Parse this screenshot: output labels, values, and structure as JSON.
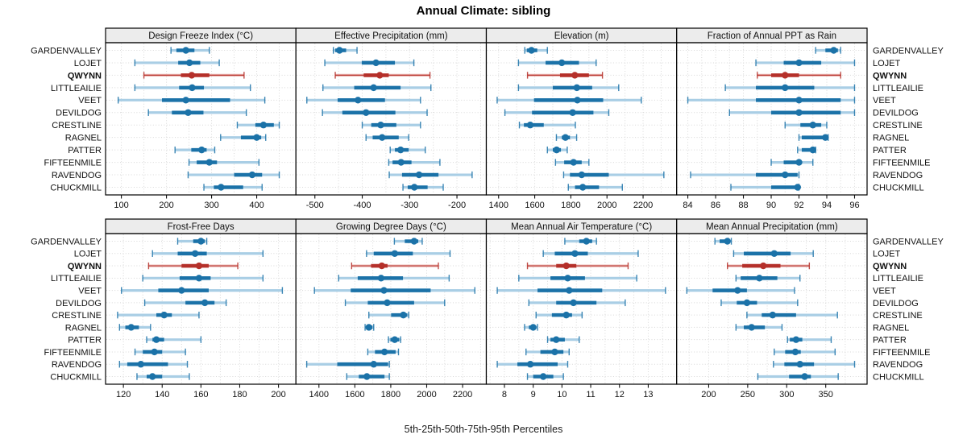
{
  "title": "Annual Climate: sibling",
  "caption": "5th-25th-50th-75th-95th Percentiles",
  "percentile_labels": [
    "5th",
    "25th",
    "50th",
    "75th",
    "95th"
  ],
  "stations": [
    "GARDENVALLEY",
    "LOJET",
    "QWYNN",
    "LITTLEAILIE",
    "VEET",
    "DEVILDOG",
    "CRESTLINE",
    "RAGNEL",
    "PATTER",
    "FIFTEENMILE",
    "RAVENDOG",
    "CHUCKMILL"
  ],
  "highlight_station": "QWYNN",
  "colors": {
    "normal": "#1b72a8",
    "normal_light": "#a9cee5",
    "highlight": "#b5302a",
    "highlight_light": "#ecb7b3",
    "strip_bg": "#ececec",
    "grid": "#d8d8d8",
    "border": "#000000",
    "text": "#111111"
  },
  "chart_data": [
    {
      "type": "interval",
      "title": "Design Freeze Index (°C)",
      "xlim": [
        65,
        487
      ],
      "ticks": [
        100,
        200,
        300,
        400
      ],
      "minor": 50,
      "values": [
        [
          210,
          222,
          243,
          262,
          295
        ],
        [
          130,
          226,
          251,
          275,
          317
        ],
        [
          150,
          232,
          256,
          295,
          372
        ],
        [
          130,
          228,
          257,
          283,
          386
        ],
        [
          93,
          190,
          243,
          341,
          418
        ],
        [
          160,
          212,
          248,
          282,
          377
        ],
        [
          357,
          397,
          415,
          438,
          450
        ],
        [
          320,
          365,
          400,
          410,
          420
        ],
        [
          219,
          255,
          278,
          289,
          307
        ],
        [
          250,
          267,
          295,
          312,
          405
        ],
        [
          248,
          350,
          390,
          412,
          450
        ],
        [
          283,
          305,
          321,
          370,
          412
        ]
      ]
    },
    {
      "type": "interval",
      "title": "Effective Precipitation (mm)",
      "xlim": [
        -540,
        -138
      ],
      "ticks": [
        -500,
        -400,
        -300,
        -200
      ],
      "minor": 50,
      "values": [
        [
          -461,
          -457,
          -448,
          -434,
          -411
        ],
        [
          -479,
          -401,
          -371,
          -331,
          -291
        ],
        [
          -457,
          -397,
          -363,
          -344,
          -257
        ],
        [
          -483,
          -417,
          -376,
          -319,
          -255
        ],
        [
          -517,
          -452,
          -409,
          -352,
          -277
        ],
        [
          -484,
          -442,
          -392,
          -330,
          -263
        ],
        [
          -400,
          -381,
          -361,
          -328,
          -277
        ],
        [
          -392,
          -378,
          -358,
          -323,
          -302
        ],
        [
          -341,
          -331,
          -319,
          -302,
          -267
        ],
        [
          -344,
          -336,
          -318,
          -296,
          -236
        ],
        [
          -343,
          -316,
          -280,
          -239,
          -168
        ],
        [
          -314,
          -304,
          -290,
          -262,
          -229
        ]
      ]
    },
    {
      "type": "interval",
      "title": "Elevation (m)",
      "xlim": [
        1332,
        2386
      ],
      "ticks": [
        1400,
        1600,
        1800,
        2000,
        2200
      ],
      "minor": 100,
      "values": [
        [
          1545,
          1556,
          1582,
          1614,
          1670
        ],
        [
          1510,
          1660,
          1750,
          1845,
          1940
        ],
        [
          1560,
          1740,
          1822,
          1900,
          1975
        ],
        [
          1510,
          1700,
          1833,
          1918,
          2065
        ],
        [
          1392,
          1596,
          1836,
          1979,
          2190
        ],
        [
          1435,
          1585,
          1810,
          1925,
          2010
        ],
        [
          1515,
          1540,
          1575,
          1650,
          1825
        ],
        [
          1720,
          1750,
          1770,
          1795,
          1832
        ],
        [
          1670,
          1700,
          1721,
          1745,
          1780
        ],
        [
          1715,
          1763,
          1815,
          1860,
          1900
        ],
        [
          1760,
          1795,
          1860,
          2010,
          2315
        ],
        [
          1786,
          1823,
          1866,
          1956,
          2085
        ]
      ]
    },
    {
      "type": "interval",
      "title": "Fraction of Annual PPT as Rain",
      "xlim": [
        83.2,
        96.9
      ],
      "ticks": [
        84,
        86,
        88,
        90,
        92,
        94,
        96
      ],
      "minor": 1,
      "values": [
        [
          93.2,
          93.9,
          94.5,
          94.8,
          95.0
        ],
        [
          88.9,
          90.9,
          92.0,
          93.6,
          96.0
        ],
        [
          89.0,
          90.0,
          91.0,
          92.0,
          95.0
        ],
        [
          86.7,
          88.9,
          91.0,
          93.1,
          96.0
        ],
        [
          84.0,
          88.9,
          92.0,
          95.0,
          96.0
        ],
        [
          87.0,
          90.0,
          92.0,
          95.0,
          96.0
        ],
        [
          91.0,
          92.1,
          93.0,
          93.6,
          94.0
        ],
        [
          92.0,
          92.2,
          93.9,
          94.0,
          94.1
        ],
        [
          91.9,
          92.2,
          93.0,
          93.1,
          93.2
        ],
        [
          90.0,
          90.9,
          92.0,
          92.2,
          93.0
        ],
        [
          84.2,
          88.9,
          91.0,
          91.9,
          92.0
        ],
        [
          87.1,
          90.0,
          91.9,
          92.0,
          92.0
        ]
      ]
    },
    {
      "type": "interval",
      "title": "Frost-Free Days",
      "xlim": [
        110.8,
        209
      ],
      "ticks": [
        120,
        140,
        160,
        180,
        200
      ],
      "minor": 10,
      "values": [
        [
          148,
          156,
          160,
          162,
          163
        ],
        [
          135,
          148,
          157,
          163,
          192
        ],
        [
          133,
          150,
          159,
          164,
          179
        ],
        [
          130,
          149,
          159,
          165,
          192
        ],
        [
          119,
          138,
          150,
          164,
          202
        ],
        [
          131,
          152,
          162,
          167,
          173
        ],
        [
          117,
          137,
          141,
          145,
          159
        ],
        [
          118,
          121,
          124,
          128,
          134
        ],
        [
          132,
          135,
          137,
          141,
          160
        ],
        [
          126,
          130,
          136,
          140,
          152
        ],
        [
          118,
          122,
          129,
          143,
          153
        ],
        [
          127,
          132,
          135,
          140,
          154
        ]
      ]
    },
    {
      "type": "interval",
      "title": "Growing Degree Days (°C)",
      "xlim": [
        1272,
        2332
      ],
      "ticks": [
        1400,
        1600,
        1800,
        2000,
        2200
      ],
      "minor": 100,
      "values": [
        [
          1820,
          1878,
          1930,
          1953,
          1975
        ],
        [
          1665,
          1705,
          1822,
          1923,
          2130
        ],
        [
          1582,
          1690,
          1750,
          1782,
          2065
        ],
        [
          1510,
          1616,
          1746,
          1868,
          2125
        ],
        [
          1375,
          1577,
          1762,
          2022,
          2268
        ],
        [
          1547,
          1672,
          1780,
          1930,
          2100
        ],
        [
          1678,
          1802,
          1870,
          1892,
          1900
        ],
        [
          1657,
          1665,
          1678,
          1698,
          1705
        ],
        [
          1787,
          1798,
          1822,
          1847,
          1855
        ],
        [
          1672,
          1712,
          1765,
          1827,
          1843
        ],
        [
          1332,
          1502,
          1705,
          1785,
          1792
        ],
        [
          1555,
          1622,
          1667,
          1765,
          1792
        ]
      ]
    },
    {
      "type": "interval",
      "title": "Mean Annual Air Temperature (°C)",
      "xlim": [
        7.37,
        13.99
      ],
      "ticks": [
        8,
        9,
        10,
        11,
        12,
        13
      ],
      "minor": 0.5,
      "values": [
        [
          10.1,
          10.6,
          10.85,
          11.05,
          11.2
        ],
        [
          9.35,
          9.75,
          10.45,
          10.9,
          12.65
        ],
        [
          8.8,
          9.8,
          10.15,
          10.5,
          12.3
        ],
        [
          8.5,
          9.6,
          10.2,
          10.8,
          12.6
        ],
        [
          7.75,
          9.15,
          10.25,
          11.4,
          13.6
        ],
        [
          8.85,
          9.8,
          10.4,
          11.2,
          12.2
        ],
        [
          9.1,
          9.65,
          10.15,
          10.35,
          10.7
        ],
        [
          8.7,
          8.85,
          9.0,
          9.1,
          9.15
        ],
        [
          9.5,
          9.6,
          9.8,
          10.1,
          10.6
        ],
        [
          8.75,
          9.25,
          9.75,
          10.05,
          10.25
        ],
        [
          7.75,
          8.45,
          8.9,
          9.85,
          10.2
        ],
        [
          8.8,
          9.0,
          9.35,
          9.7,
          10.05
        ]
      ]
    },
    {
      "type": "interval",
      "title": "Mean Annual Precipitation (mm)",
      "xlim": [
        159,
        403
      ],
      "ticks": [
        200,
        250,
        300,
        350
      ],
      "minor": 25,
      "values": [
        [
          208,
          214,
          224,
          227,
          229
        ],
        [
          232,
          245,
          284,
          305,
          334
        ],
        [
          224,
          243,
          270,
          292,
          329
        ],
        [
          235,
          241,
          265,
          288,
          317
        ],
        [
          172,
          205,
          237,
          249,
          310
        ],
        [
          216,
          236,
          249,
          262,
          314
        ],
        [
          249,
          268,
          282,
          312,
          365
        ],
        [
          235,
          245,
          255,
          272,
          294
        ],
        [
          301,
          304,
          312,
          320,
          357
        ],
        [
          284,
          298,
          311,
          318,
          362
        ],
        [
          283,
          297,
          317,
          335,
          387
        ],
        [
          263,
          303,
          323,
          331,
          366
        ]
      ]
    }
  ]
}
